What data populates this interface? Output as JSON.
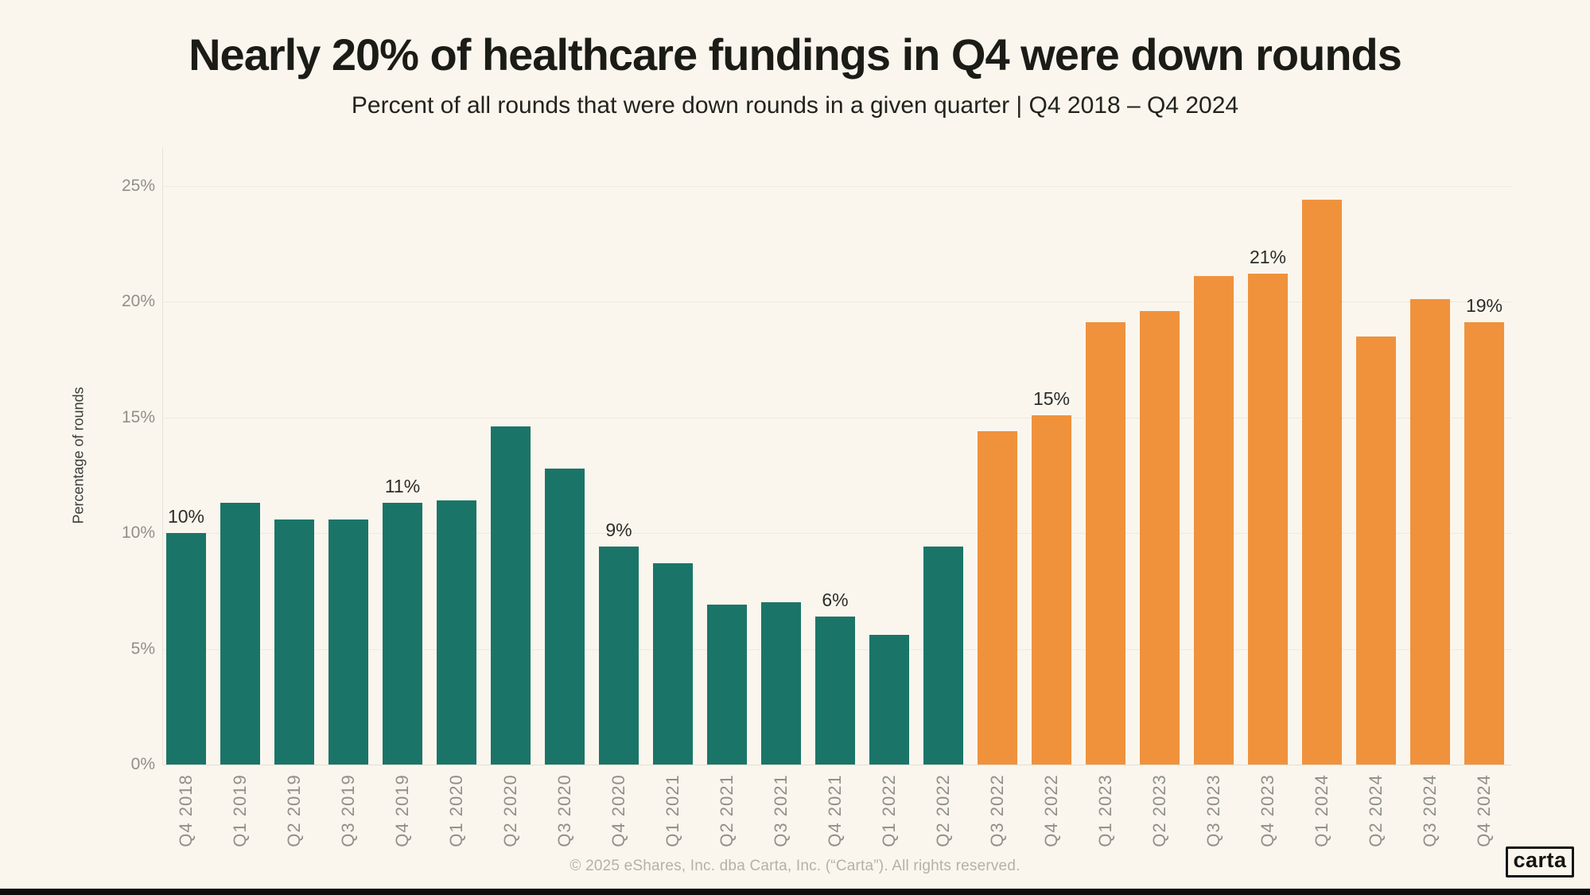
{
  "title": "Nearly 20% of healthcare fundings in Q4 were down rounds",
  "subtitle": "Percent of all rounds that were down rounds in a given quarter | Q4 2018 – Q4 2024",
  "y_axis": {
    "title": "Percentage of rounds",
    "tick_labels": [
      "0%",
      "5%",
      "10%",
      "15%",
      "20%",
      "25%"
    ],
    "tick_values": [
      0,
      5,
      10,
      15,
      20,
      25
    ]
  },
  "footer": {
    "copyright": "© 2025 eShares, Inc. dba Carta, Inc. (“Carta”). All rights reserved.",
    "logo_text": "carta"
  },
  "colors": {
    "background": "#faf6ee",
    "bar_teal": "#1a7568",
    "bar_orange": "#f0923c",
    "gridline": "#edeae2",
    "axis_line": "#e5e2d9",
    "tick_text": "#908f89",
    "data_label_text": "#2d2d27",
    "footer_text": "#b5b1a8"
  },
  "chart_data": {
    "type": "bar",
    "title": "Nearly 20% of healthcare fundings in Q4 were down rounds",
    "subtitle": "Percent of all rounds that were down rounds in a given quarter | Q4 2018 – Q4 2024",
    "ylabel": "Percentage of rounds",
    "xlabel": "",
    "ylim": [
      0,
      25
    ],
    "ytick_step": 5,
    "grid": true,
    "legend": false,
    "categories": [
      "Q4 2018",
      "Q1 2019",
      "Q2 2019",
      "Q3 2019",
      "Q4 2019",
      "Q1 2020",
      "Q2 2020",
      "Q3 2020",
      "Q4 2020",
      "Q1 2021",
      "Q2 2021",
      "Q3 2021",
      "Q4 2021",
      "Q1 2022",
      "Q2 2022",
      "Q3 2022",
      "Q4 2022",
      "Q1 2023",
      "Q2 2023",
      "Q3 2023",
      "Q4 2023",
      "Q1 2024",
      "Q2 2024",
      "Q3 2024",
      "Q4 2024"
    ],
    "values": [
      10.0,
      11.3,
      10.6,
      10.6,
      11.3,
      11.4,
      14.6,
      12.8,
      9.4,
      8.7,
      6.9,
      7.0,
      6.4,
      5.6,
      9.4,
      14.4,
      15.1,
      19.1,
      19.6,
      21.1,
      21.2,
      24.4,
      18.5,
      20.1,
      19.1
    ],
    "highlight_from_index": 15,
    "series_colors": {
      "base": "#1a7568",
      "highlight": "#f0923c"
    },
    "point_labels": [
      {
        "index": 0,
        "text": "10%"
      },
      {
        "index": 4,
        "text": "11%"
      },
      {
        "index": 8,
        "text": "9%"
      },
      {
        "index": 12,
        "text": "6%"
      },
      {
        "index": 16,
        "text": "15%"
      },
      {
        "index": 20,
        "text": "21%"
      },
      {
        "index": 24,
        "text": "19%"
      }
    ]
  }
}
